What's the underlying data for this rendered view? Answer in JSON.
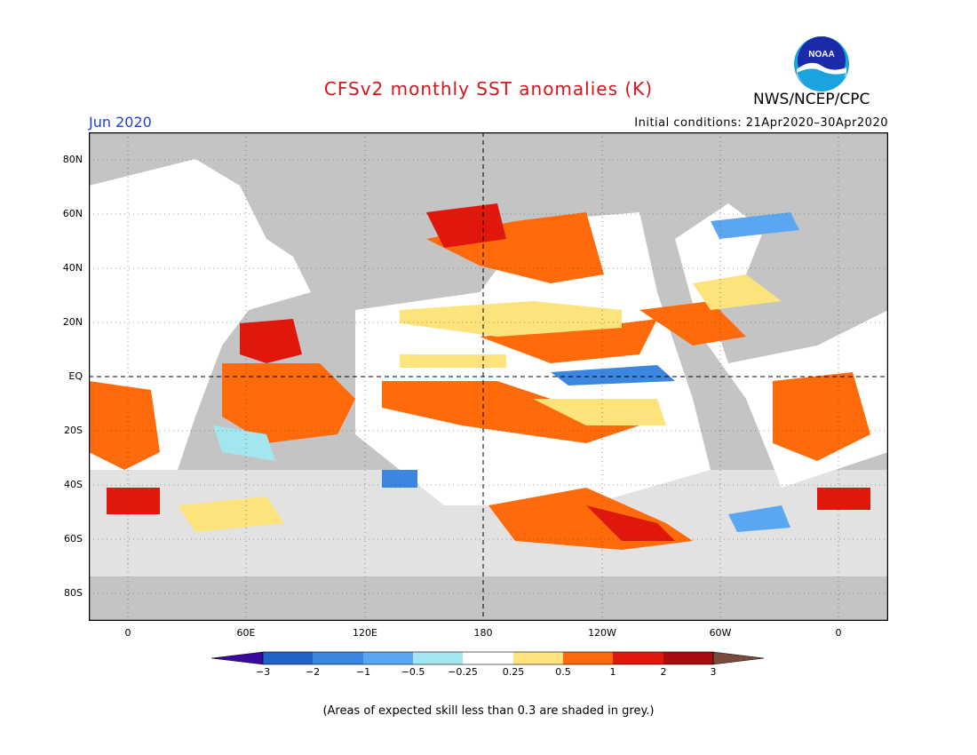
{
  "title": "CFSv2 monthly SST anomalies (K)",
  "month": "Jun 2020",
  "initial_conditions": "Initial conditions: 21Apr2020–30Apr2020",
  "agency": "NWS/NCEP/CPC",
  "logo_text": "NOAA",
  "note": "(Areas of expected skill less than 0.3 are shaded in grey.)",
  "lat_labels": [
    "80N",
    "60N",
    "40N",
    "20N",
    "EQ",
    "20S",
    "40S",
    "60S",
    "80S"
  ],
  "lon_labels": [
    "0",
    "60E",
    "120E",
    "180",
    "120W",
    "60W",
    "0"
  ],
  "legend_ticks": [
    "−3",
    "−2",
    "−1",
    "−0.5",
    "−0.25",
    "0.25",
    "0.5",
    "1",
    "2",
    "3"
  ],
  "colors": {
    "land": "#c4c4c4",
    "title": "#d8141a",
    "month": "#1e3fd0",
    "legend": [
      "#3a0aa0",
      "#1f62c8",
      "#3a86e0",
      "#5aa6f0",
      "#a4e6f0",
      "#ffffff",
      "#fde37c",
      "#ff6a0a",
      "#e0180c",
      "#a80c0c",
      "#7a4a3c"
    ]
  }
}
